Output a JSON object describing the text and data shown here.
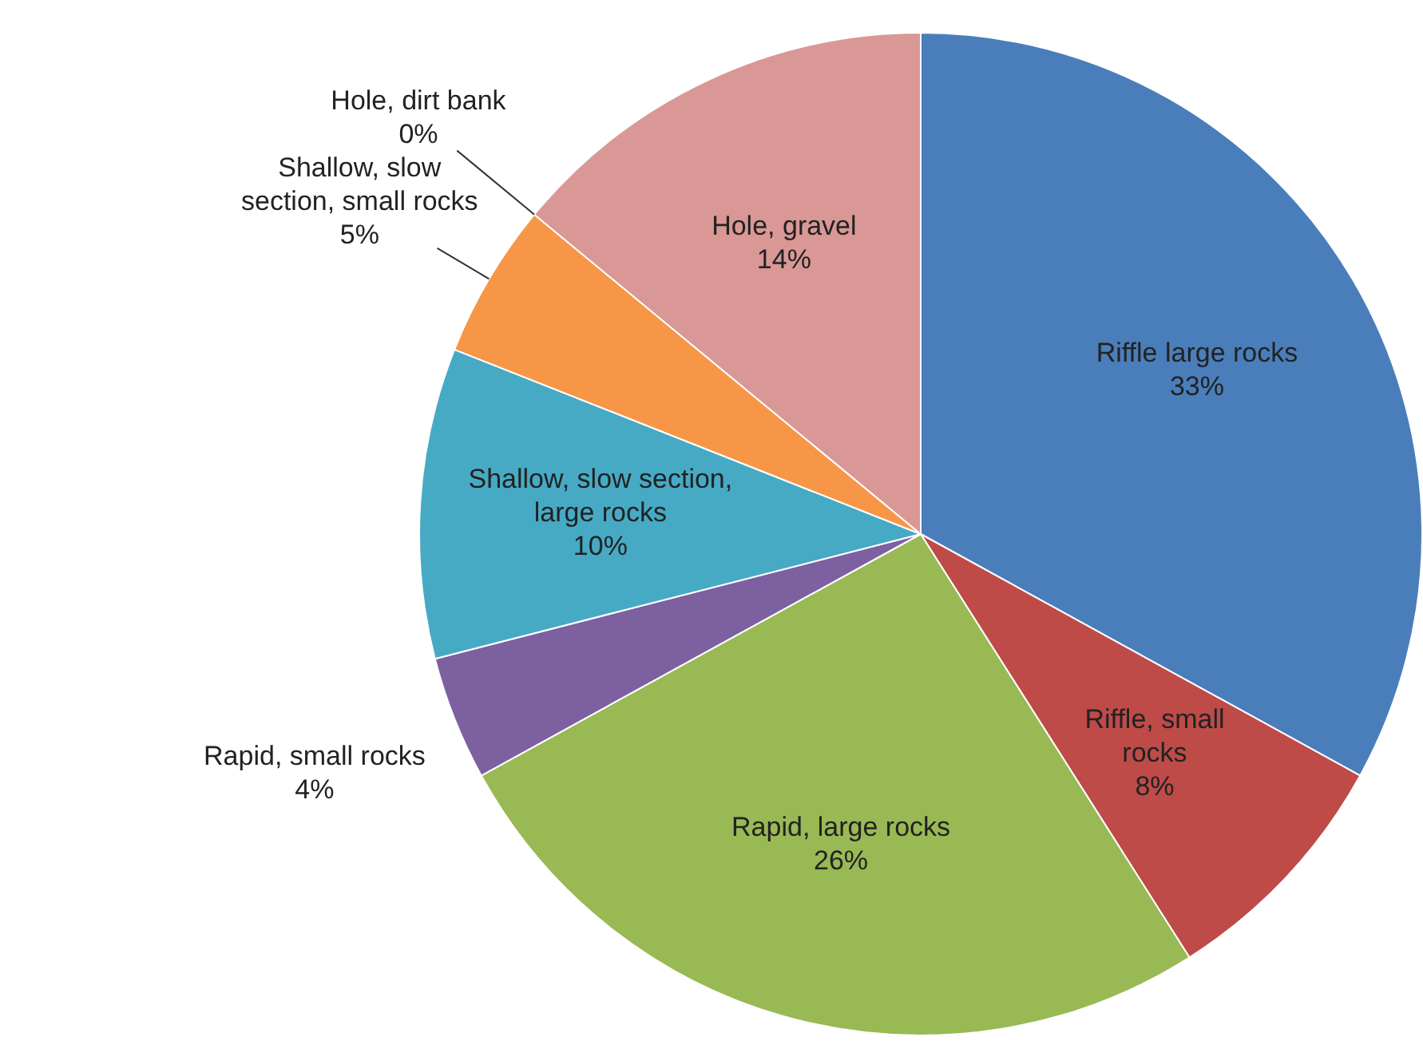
{
  "chart_data": {
    "type": "pie",
    "categories": [
      "Riffle large rocks",
      "Riffle, small rocks",
      "Rapid, large rocks",
      "Rapid, small rocks",
      "Shallow, slow section, large rocks",
      "Shallow, slow section, small rocks",
      "Hole, dirt bank",
      "Hole, gravel"
    ],
    "values": [
      33,
      8,
      26,
      4,
      10,
      5,
      0,
      14
    ],
    "value_labels": [
      "33%",
      "8%",
      "26%",
      "4%",
      "10%",
      "5%",
      "0%",
      "14%"
    ],
    "colors": [
      "#4a7ebb",
      "#be4b48",
      "#98b954",
      "#7d60a0",
      "#46aac5",
      "#f79646",
      "#8fb0dc",
      "#d99795"
    ],
    "legend": false
  }
}
